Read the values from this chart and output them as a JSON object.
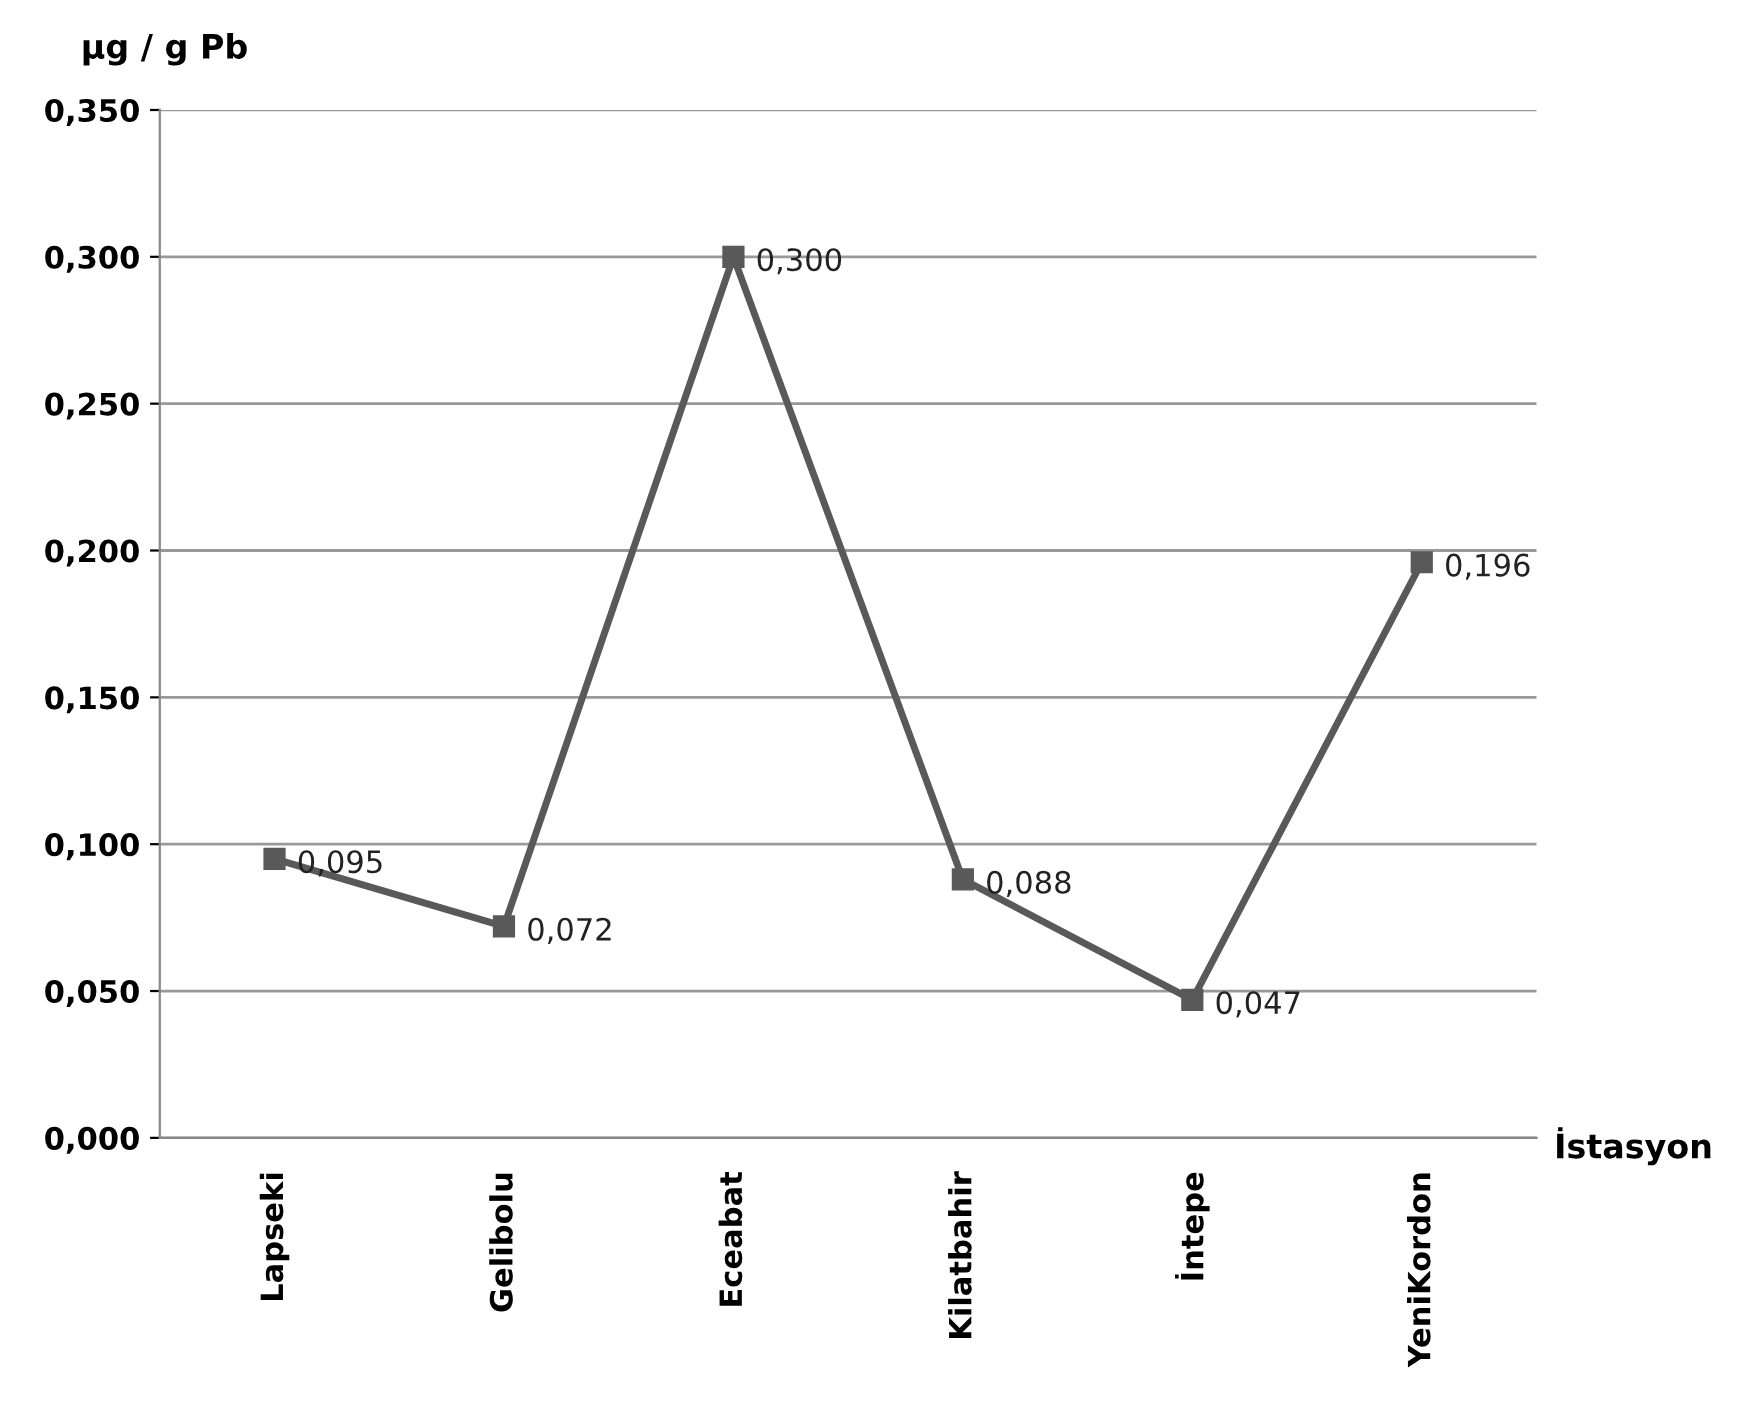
{
  "chart_data": {
    "type": "line",
    "xlabel": "İstasyon",
    "ylabel": "µg / g Pb",
    "categories": [
      "Lapseki",
      "Gelibolu",
      "Eceabat",
      "Kilatbahir",
      "İntepe",
      "YeniKordon"
    ],
    "series": [
      {
        "color": "#595959",
        "values": [
          0.095,
          0.072,
          0.3,
          0.088,
          0.047,
          0.196
        ],
        "value_labels": [
          "0,095",
          "0,072",
          "0,300",
          "0,088",
          "0,047",
          "0,196"
        ]
      }
    ],
    "ylim": [
      0,
      0.35
    ],
    "yticks": [
      {
        "value": 0,
        "label": "0,000"
      },
      {
        "value": 0.05,
        "label": "0,050"
      },
      {
        "value": 0.1,
        "label": "0,100"
      },
      {
        "value": 0.15,
        "label": "0,150"
      },
      {
        "value": 0.2,
        "label": "0,200"
      },
      {
        "value": 0.25,
        "label": "0,250"
      },
      {
        "value": 0.3,
        "label": "0,300"
      },
      {
        "value": 0.35,
        "label": "0,350"
      }
    ],
    "grid": "y",
    "marker": "square",
    "line_style": "solid",
    "legend": false
  }
}
